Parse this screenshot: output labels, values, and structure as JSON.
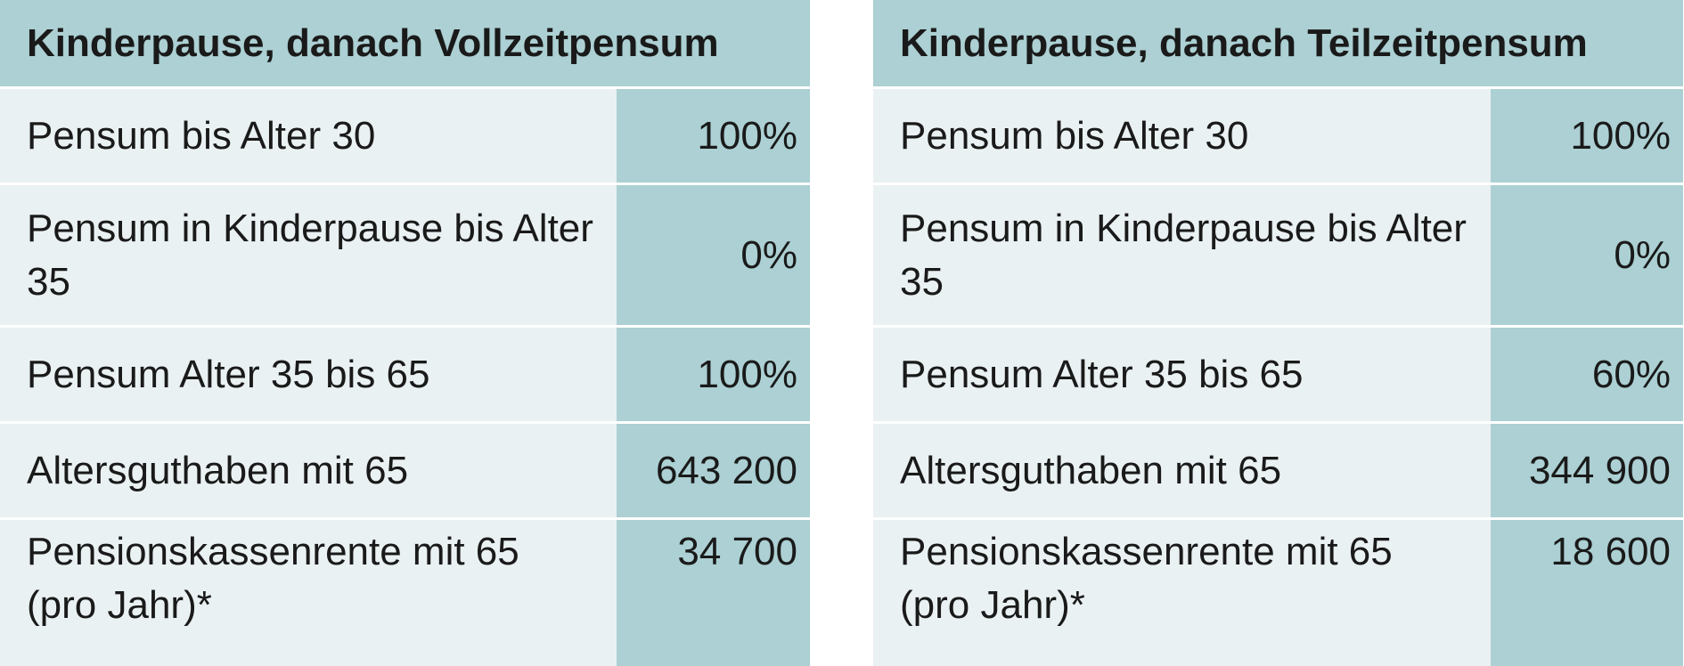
{
  "tables": [
    {
      "title": "Kinderpause, danach Vollzeitpensum",
      "rows": [
        {
          "label": "Pensum bis Alter 30",
          "value": "100%"
        },
        {
          "label": "Pensum in Kinderpause bis Alter 35",
          "value": "0%"
        },
        {
          "label": "Pensum Alter 35 bis 65",
          "value": "100%"
        },
        {
          "label": "Altersguthaben mit 65",
          "value": "643 200"
        },
        {
          "label": "Pensionskassenrente mit 65 (pro Jahr)*",
          "value": "34 700"
        }
      ]
    },
    {
      "title": "Kinderpause, danach Teilzeitpensum",
      "rows": [
        {
          "label": "Pensum bis Alter 30",
          "value": "100%"
        },
        {
          "label": "Pensum in Kinderpause bis Alter 35",
          "value": "0%"
        },
        {
          "label": "Pensum Alter 35 bis 65",
          "value": "60%"
        },
        {
          "label": "Altersguthaben mit 65",
          "value": "344 900"
        },
        {
          "label": "Pensionskassenrente mit 65 (pro Jahr)*",
          "value": "18 600"
        }
      ]
    }
  ],
  "colors": {
    "header_bg": "#acd0d3",
    "label_bg": "#eaf1f2",
    "value_bg": "#acd0d3",
    "divider": "#ffffff"
  }
}
